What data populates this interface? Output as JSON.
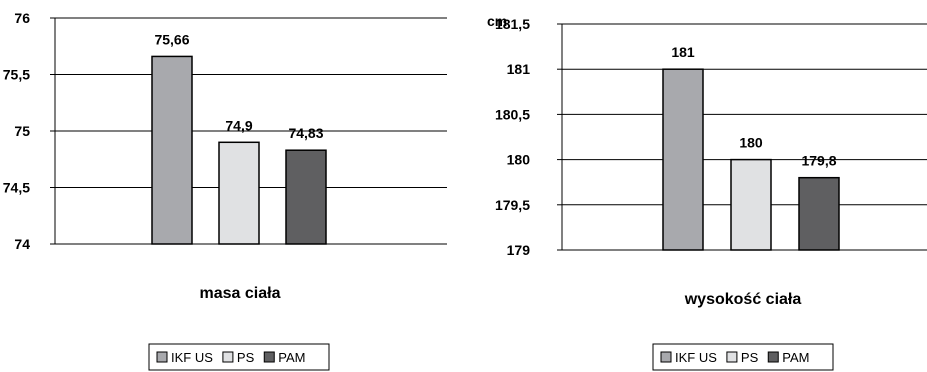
{
  "legend_labels": [
    "IKF US",
    "PS",
    "PAM"
  ],
  "series_colors": [
    "#a8a9ad",
    "#e0e1e3",
    "#5f5f61"
  ],
  "chart_data": [
    {
      "type": "bar",
      "title": "",
      "xlabel": "masa ciała",
      "ylabel": "",
      "unit_label": "",
      "categories": [
        "masa ciała"
      ],
      "series": [
        {
          "name": "IKF US",
          "values": [
            75.66
          ]
        },
        {
          "name": "PS",
          "values": [
            74.9
          ]
        },
        {
          "name": "PAM",
          "values": [
            74.83
          ]
        }
      ],
      "data_labels": [
        "75,66",
        "74,9",
        "74,83"
      ],
      "ylim": [
        74,
        76
      ],
      "ytick_labels": [
        "74",
        "74,5",
        "75",
        "75,5",
        "76"
      ],
      "grid": true,
      "legend": "bottom"
    },
    {
      "type": "bar",
      "title": "",
      "xlabel": "wysokość ciała",
      "ylabel": "",
      "unit_label": "cm",
      "categories": [
        "wysokość ciała"
      ],
      "series": [
        {
          "name": "IKF US",
          "values": [
            181
          ]
        },
        {
          "name": "PS",
          "values": [
            180
          ]
        },
        {
          "name": "PAM",
          "values": [
            179.8
          ]
        }
      ],
      "data_labels": [
        "181",
        "180",
        "179,8"
      ],
      "ylim": [
        179,
        181.5
      ],
      "ytick_labels": [
        "179",
        "179,5",
        "180",
        "180,5",
        "181",
        "181,5"
      ],
      "grid": true,
      "legend": "bottom"
    }
  ]
}
